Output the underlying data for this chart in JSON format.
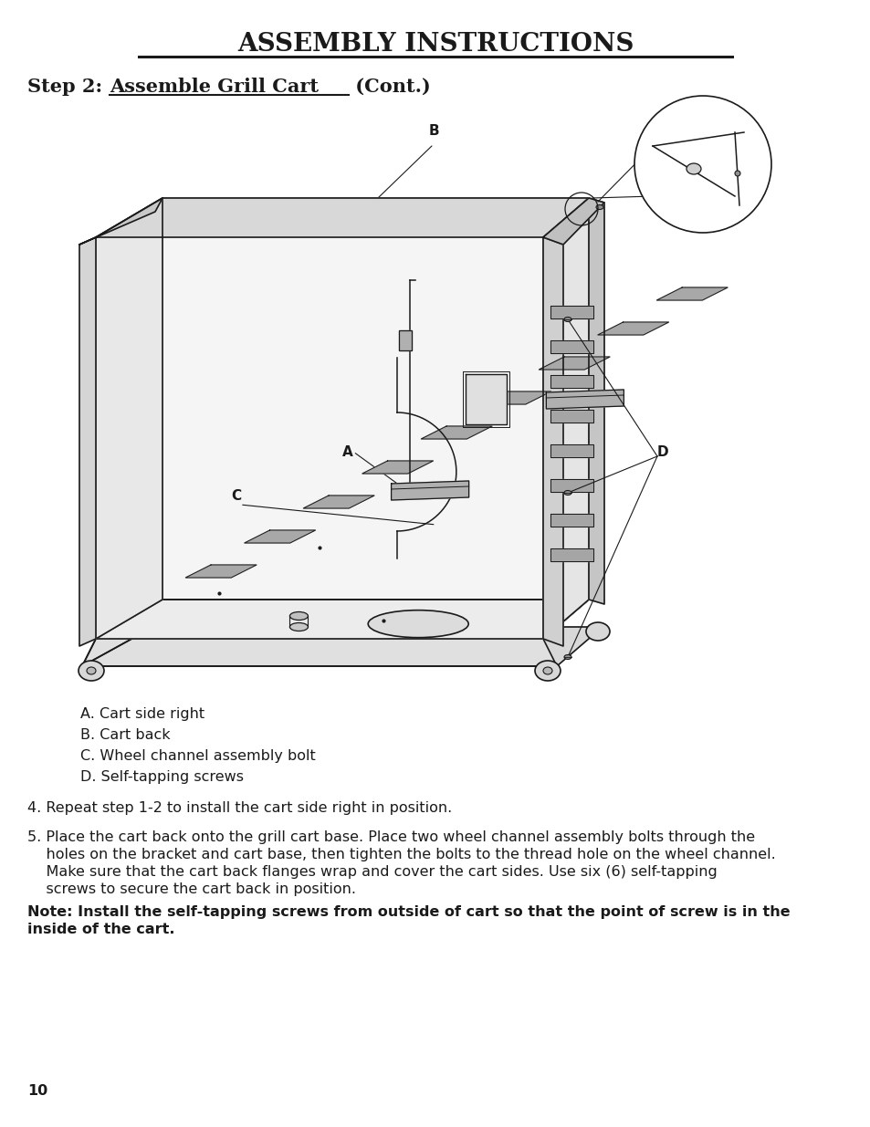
{
  "title": "ASSEMBLY INSTRUCTIONS",
  "legend_items": [
    "A. Cart side right",
    "B. Cart back",
    "C. Wheel channel assembly bolt",
    "D. Self-tapping screws"
  ],
  "step4": "4. Repeat step 1-2 to install the cart side right in position.",
  "step5": "5. Place the cart back onto the grill cart base. Place two wheel channel assembly bolts through the\n    holes on the bracket and cart base, then tighten the bolts to the thread hole on the wheel channel.\n    Make sure that the cart back flanges wrap and cover the cart sides. Use six (6) self-tapping\n    screws to secure the cart back in position.",
  "note": "Note: Install the self-tapping screws from outside of cart so that the point of screw is in the\ninside of the cart.",
  "page_number": "10",
  "bg_color": "#ffffff",
  "text_color": "#1a1a1a",
  "title_fontsize": 20,
  "subtitle_fontsize": 15,
  "body_fontsize": 11.5,
  "legend_fontsize": 11.5
}
